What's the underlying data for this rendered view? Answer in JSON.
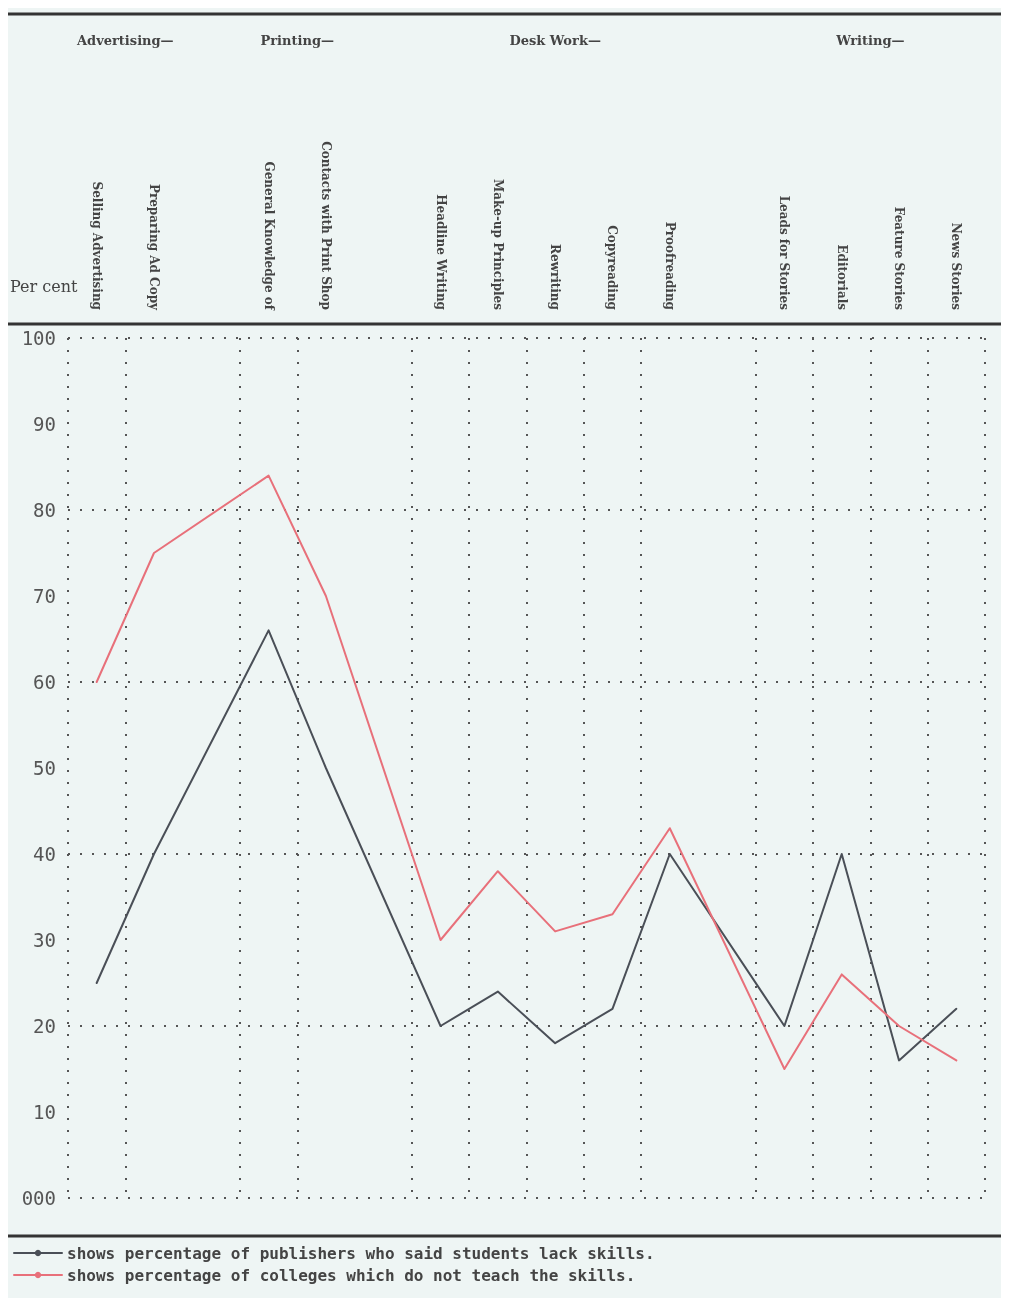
{
  "chart_data": {
    "type": "line",
    "ylabel": "Per cent",
    "categories": [
      "Selling Advertising",
      "Preparing Ad Copy",
      null,
      "General Knowledge of",
      "Contacts with Print Shop",
      null,
      "Headline Writing",
      "Make-up Principles",
      "Rewriting",
      "Copyreading",
      "Proofreading",
      null,
      "Leads for Stories",
      "Editorials",
      "Feature Stories",
      "News Stories"
    ],
    "annotations": [
      "Advertising—",
      "Printing—",
      "Desk Work—",
      "Writing—"
    ],
    "series": [
      {
        "name": "shows percentage of publishers who said students lack skills.",
        "color": "#4a4f57",
        "values": [
          25,
          40,
          null,
          66,
          50,
          null,
          20,
          24,
          18,
          22,
          40,
          null,
          20,
          40,
          16,
          22
        ]
      },
      {
        "name": "shows percentage of colleges which do not teach the skills.",
        "color": "#e8707a",
        "values": [
          60,
          75,
          null,
          84,
          70,
          null,
          30,
          38,
          31,
          33,
          43,
          null,
          15,
          26,
          20,
          16
        ]
      }
    ],
    "ylim": [
      0,
      100
    ],
    "yticks": [
      {
        "value": 0,
        "label": "000"
      },
      10,
      20,
      30,
      40,
      50,
      60,
      70,
      80,
      90,
      100
    ],
    "grid": true,
    "legend": "bottom",
    "marker": "none",
    "line_style": "solid"
  }
}
